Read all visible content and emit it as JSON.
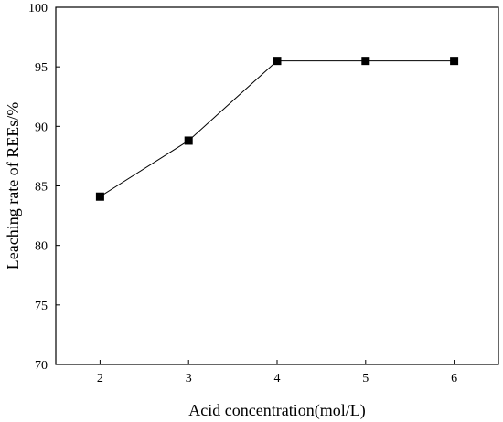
{
  "chart_data": {
    "type": "line",
    "xlabel": "Acid concentration(mol/L)",
    "ylabel": "Leaching rate of REEs/%",
    "xlim": [
      1.5,
      6.5
    ],
    "ylim": [
      70,
      100
    ],
    "x_ticks": [
      2,
      3,
      4,
      5,
      6
    ],
    "y_ticks": [
      70,
      75,
      80,
      85,
      90,
      95,
      100
    ],
    "grid": false,
    "series": [
      {
        "x": [
          2,
          3,
          4,
          5,
          6
        ],
        "values": [
          84.1,
          88.8,
          95.5,
          95.5,
          95.5
        ],
        "marker": "square",
        "color": "#000000"
      }
    ]
  }
}
